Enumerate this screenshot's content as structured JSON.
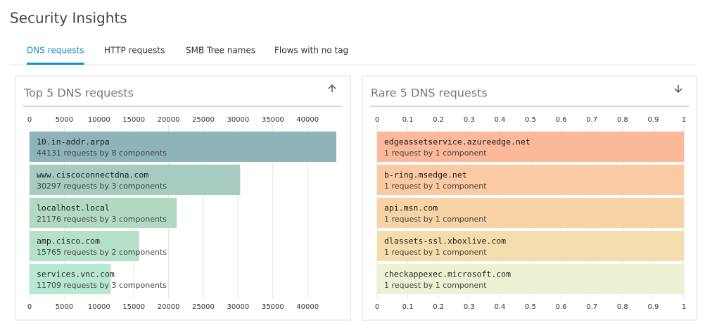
{
  "header": {
    "title": "Security Insights"
  },
  "tabs": [
    "DNS requests",
    "HTTP requests",
    "SMB Tree names",
    "Flows with no tag"
  ],
  "active_tab": 0,
  "chart_data": [
    {
      "type": "bar",
      "orientation": "horizontal",
      "title": "Top 5 DNS requests",
      "sort_icon": "up",
      "categories": [
        "10.in-addr.arpa",
        "www.ciscoconnectdna.com",
        "localhost.local",
        "amp.cisco.com",
        "services.vnc.com"
      ],
      "values": [
        44131,
        30297,
        21176,
        15765,
        11709
      ],
      "value_labels": [
        "44131 requests by 8 components",
        "30297 requests by 3 components",
        "21176 requests by 3 components",
        "15765 requests by 2 components",
        "11709 requests by 3 components"
      ],
      "colors": [
        "#8fb3bb",
        "#a6cbbf",
        "#b2d9c2",
        "#b6e1c9",
        "#b7e8d2"
      ],
      "xlim": [
        0,
        44131
      ],
      "xticks": [
        0,
        5000,
        10000,
        15000,
        20000,
        25000,
        30000,
        35000,
        40000
      ],
      "grid": true
    },
    {
      "type": "bar",
      "orientation": "horizontal",
      "title": "Rare 5 DNS requests",
      "sort_icon": "down",
      "categories": [
        "edgeassetservice.azureedge.net",
        "b-ring.msedge.net",
        "api.msn.com",
        "dlassets-ssl.xboxlive.com",
        "checkappexec.microsoft.com"
      ],
      "values": [
        1,
        1,
        1,
        1,
        1
      ],
      "value_labels": [
        "1 request by 1 component",
        "1 request by 1 component",
        "1 request by 1 component",
        "1 request by 1 component",
        "1 request by 1 component"
      ],
      "colors": [
        "#fbb89b",
        "#fbc9a2",
        "#f7d3a6",
        "#f4ddad",
        "#eef2d5"
      ],
      "xlim": [
        0,
        1
      ],
      "xticks": [
        0,
        0.1,
        0.2,
        0.3,
        0.4,
        0.5,
        0.6,
        0.7,
        0.8,
        0.9,
        1
      ],
      "grid": true
    }
  ]
}
